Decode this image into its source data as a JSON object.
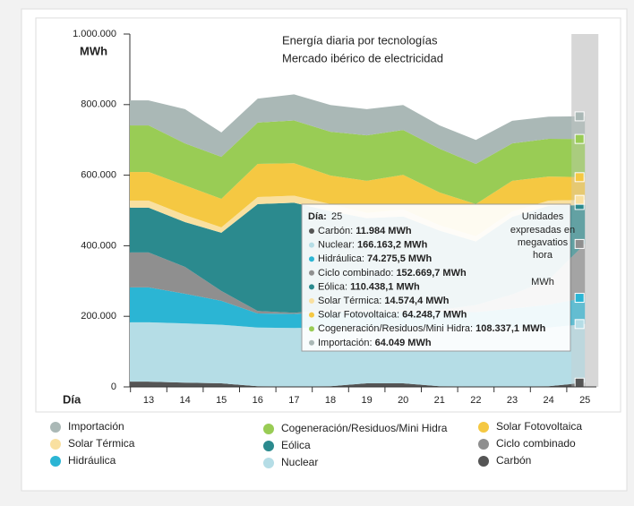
{
  "chart_data": {
    "type": "stacked_area",
    "title": "Energía diaria por tecnologías",
    "subtitle": "Mercado ibérico de electricidad",
    "y_axis_label": "MWh",
    "x_axis_label": "Día",
    "categories": [
      "13",
      "14",
      "15",
      "16",
      "17",
      "18",
      "19",
      "20",
      "21",
      "22",
      "23",
      "24",
      "25"
    ],
    "ylim": [
      0,
      1000000
    ],
    "yticks": [
      0,
      {
        "value": 200000,
        "label": "200.000"
      },
      {
        "value": 400000,
        "label": "400.000"
      },
      {
        "value": 600000,
        "label": "600.000"
      },
      {
        "value": 800000,
        "label": "800.000"
      },
      {
        "value": 1000000,
        "label": "1.000.000"
      }
    ],
    "highlight": "25",
    "series": [
      {
        "name": "Carbón",
        "color": "#555555",
        "values": [
          15000,
          12000,
          10000,
          2000,
          1000,
          2000,
          10000,
          10000,
          2000,
          1000,
          1000,
          2000,
          11984
        ]
      },
      {
        "name": "Nuclear",
        "color": "#b5dde6",
        "values": [
          168000,
          168000,
          166000,
          166000,
          166000,
          166000,
          158000,
          158000,
          166000,
          166000,
          166000,
          166000,
          166163.2
        ]
      },
      {
        "name": "Hidráulica",
        "color": "#2bb5d4",
        "values": [
          99000,
          84000,
          68000,
          40000,
          40000,
          45000,
          45000,
          45000,
          45000,
          45000,
          55000,
          65000,
          74275.5
        ]
      },
      {
        "name": "Ciclo combinado",
        "color": "#8f8f8f",
        "values": [
          99000,
          76000,
          28000,
          7000,
          3000,
          5000,
          5000,
          5000,
          5000,
          20000,
          40000,
          70000,
          152669.7
        ]
      },
      {
        "name": "Eólica",
        "color": "#2b8a8e",
        "values": [
          127000,
          127000,
          165000,
          303000,
          312000,
          280000,
          260000,
          265000,
          225000,
          180000,
          220000,
          210000,
          110438.1
        ]
      },
      {
        "name": "Solar Térmica",
        "color": "#f9e0a0",
        "values": [
          20000,
          20000,
          15000,
          20000,
          20000,
          20000,
          15000,
          20000,
          15000,
          15000,
          15000,
          15000,
          14574.4
        ]
      },
      {
        "name": "Solar Fotovoltaica",
        "color": "#f5c842",
        "values": [
          81000,
          84000,
          81000,
          94000,
          92000,
          81000,
          91000,
          98000,
          93000,
          91000,
          87000,
          68000,
          64248.7
        ]
      },
      {
        "name": "Cogeneración/Residuos/Mini Hidra",
        "color": "#99cc55",
        "values": [
          132000,
          119000,
          119000,
          117000,
          121000,
          124000,
          129000,
          127000,
          124000,
          114000,
          106000,
          107000,
          108337.1
        ]
      },
      {
        "name": "Importación",
        "color": "#aab8b6",
        "values": [
          71000,
          97000,
          69000,
          68000,
          74000,
          76000,
          74000,
          71000,
          66000,
          68000,
          64000,
          63000,
          64049
        ]
      }
    ],
    "tooltip": {
      "day_label": "Día:",
      "day": "25",
      "items": [
        {
          "name": "Carbón:",
          "value": "11.984 MWh"
        },
        {
          "name": "Nuclear:",
          "value": "166.163,2 MWh"
        },
        {
          "name": "Hidráulica:",
          "value": "74.275,5 MWh"
        },
        {
          "name": "Ciclo combinado:",
          "value": "152.669,7 MWh"
        },
        {
          "name": "Eólica:",
          "value": "110.438,1 MWh"
        },
        {
          "name": "Solar Térmica:",
          "value": "14.574,4 MWh"
        },
        {
          "name": "Solar Fotovoltaica:",
          "value": "64.248,7 MWh"
        },
        {
          "name": "Cogeneración/Residuos/Mini Hidra:",
          "value": "108.337,1 MWh"
        },
        {
          "name": "Importación:",
          "value": "64.049 MWh"
        }
      ],
      "note": [
        "Unidades",
        "expresadas en",
        "megavatios",
        "hora",
        "MWh"
      ]
    }
  }
}
